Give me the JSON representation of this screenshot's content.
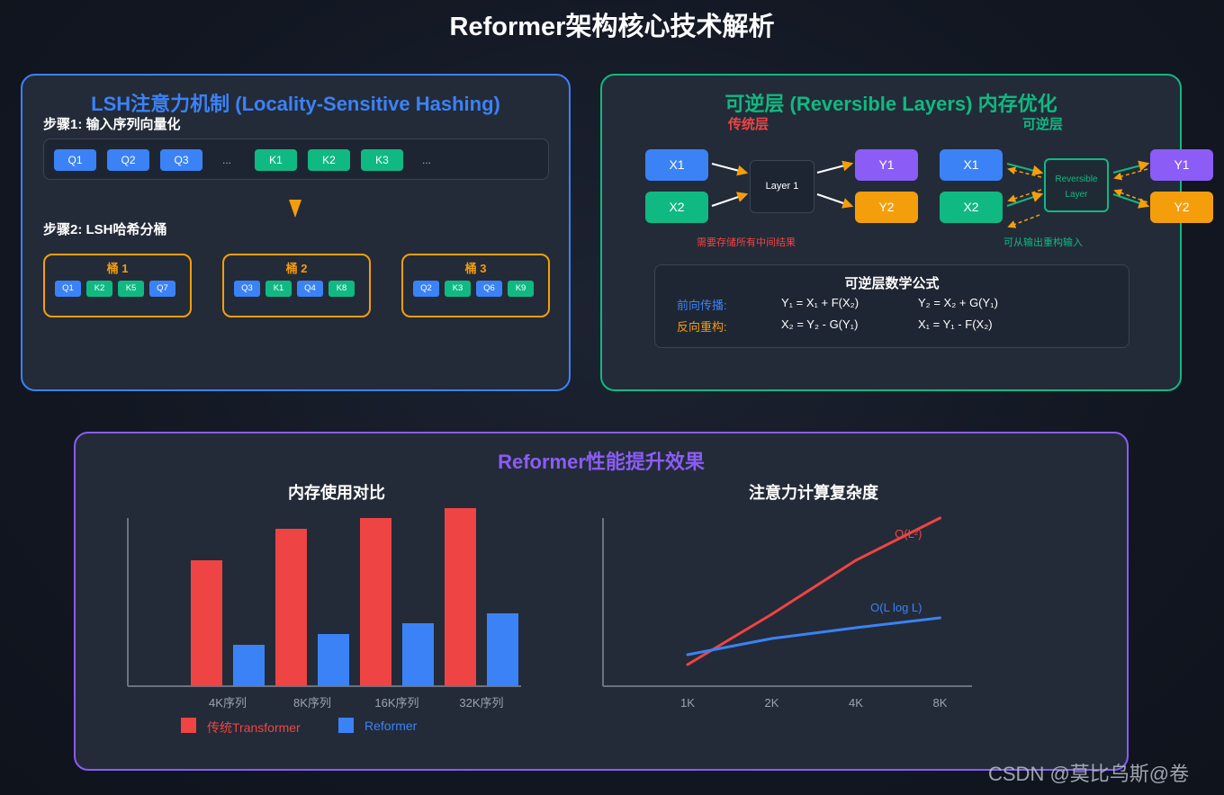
{
  "title": "Reformer架构核心技术解析",
  "lsh": {
    "title": "LSH注意力机制 (Locality-Sensitive Hashing)",
    "step1": "步骤1: 输入序列向量化",
    "q_tokens": [
      "Q1",
      "Q2",
      "Q3"
    ],
    "k_tokens": [
      "K1",
      "K2",
      "K3"
    ],
    "ellipsis": "...",
    "step2": "步骤2: LSH哈希分桶",
    "buckets": [
      {
        "label": "桶 1",
        "tokens": [
          "Q1",
          "K2",
          "K5",
          "Q7"
        ]
      },
      {
        "label": "桶 2",
        "tokens": [
          "Q3",
          "K1",
          "Q4",
          "K8"
        ]
      },
      {
        "label": "桶 3",
        "tokens": [
          "Q2",
          "K3",
          "Q6",
          "K9"
        ]
      }
    ]
  },
  "rev": {
    "title": "可逆层 (Reversible Layers) 内存优化",
    "traditional_label": "传统层",
    "reversible_label": "可逆层",
    "x1": "X1",
    "x2": "X2",
    "y1": "Y1",
    "y2": "Y2",
    "layer1": "Layer 1",
    "rev_layer": [
      "Reversible",
      "Layer"
    ],
    "traditional_note": "需要存储所有中间结果",
    "reversible_note": "可从输出重构输入",
    "formula_title": "可逆层数学公式",
    "forward_label": "前向传播:",
    "backward_label": "反向重构:",
    "forward": [
      "Y₁ = X₁ + F(X₂)",
      "Y₂ = X₂ + G(Y₁)"
    ],
    "backward": [
      "X₂ = Y₂ - G(Y₁)",
      "X₁ = Y₁ - F(X₂)"
    ]
  },
  "perf": {
    "title": "Reformer性能提升效果",
    "watermark": "CSDN @莫比乌斯@卷"
  },
  "colors": {
    "blue": "#3b82f6",
    "green": "#10b981",
    "purple": "#8b5cf6",
    "orange": "#f59e0b",
    "red": "#ef4444"
  },
  "chart_data": [
    {
      "type": "bar",
      "title": "内存使用对比",
      "categories": [
        "4K序列",
        "8K序列",
        "16K序列",
        "32K序列"
      ],
      "series": [
        {
          "name": "传统Transformer",
          "values": [
            140,
            175,
            187,
            198
          ],
          "color": "#ef4444"
        },
        {
          "name": "Reformer",
          "values": [
            46,
            58,
            70,
            81
          ],
          "color": "#3b82f6"
        }
      ],
      "ylim": [
        0,
        200
      ],
      "legend": "bottom-left"
    },
    {
      "type": "line",
      "title": "注意力计算复杂度",
      "x": [
        "1K",
        "2K",
        "4K",
        "8K"
      ],
      "series": [
        {
          "name": "O(L²)",
          "values": [
            24,
            80,
            140,
            187
          ],
          "color": "#ef4444"
        },
        {
          "name": "O(L log L)",
          "values": [
            35,
            53,
            65,
            76
          ],
          "color": "#3b82f6"
        }
      ],
      "ylim": [
        0,
        200
      ]
    }
  ]
}
